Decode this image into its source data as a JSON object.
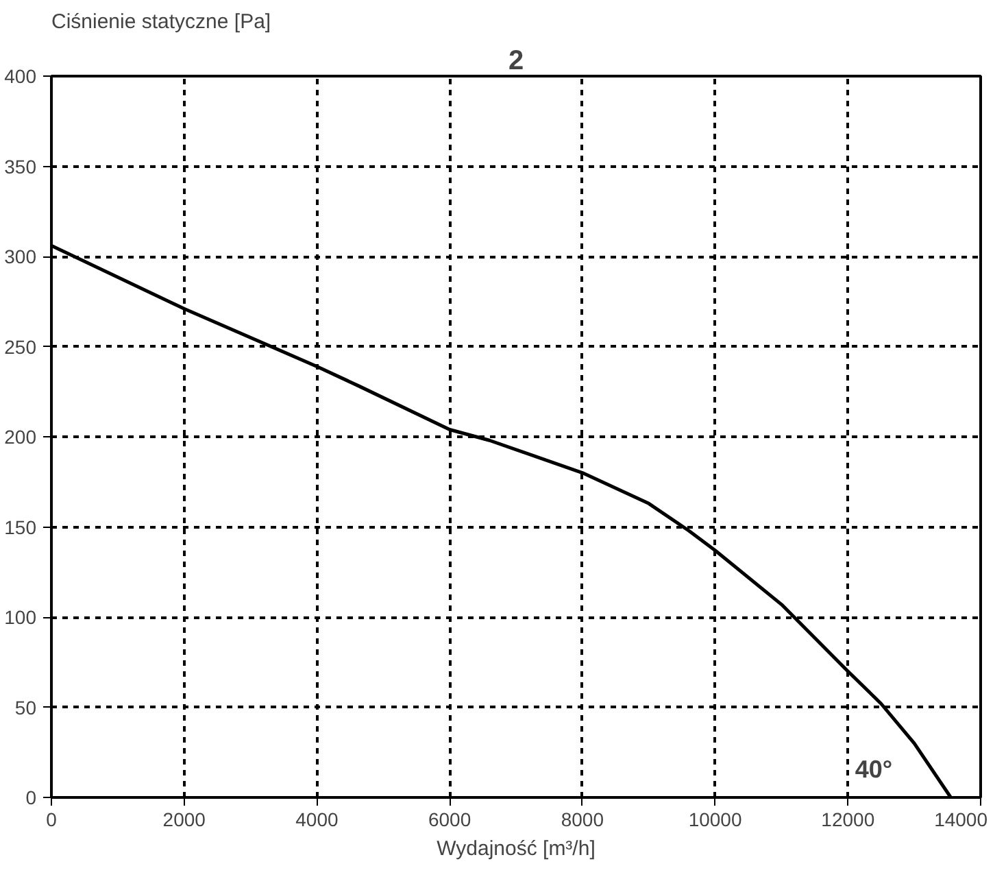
{
  "chart_data": {
    "type": "line",
    "xlabel": "Wydajność [m³/h]",
    "ylabel": "Ciśnienie statyczne [Pa]",
    "annotations": [
      "2",
      "40°"
    ],
    "x": [
      0,
      2000,
      4000,
      4640,
      6000,
      6600,
      8000,
      9000,
      9600,
      10000,
      11000,
      12000,
      12500,
      13000,
      13550
    ],
    "series": [
      {
        "color": "#000000",
        "values": [
          306,
          271,
          239,
          228,
          204,
          198,
          180,
          163,
          148,
          137,
          107,
          70,
          52,
          30,
          0
        ]
      }
    ],
    "xlim": [
      0,
      14000
    ],
    "ylim": [
      0,
      400
    ],
    "xticks": [
      0,
      2000,
      4000,
      6000,
      8000,
      10000,
      12000,
      14000
    ],
    "yticks": [
      0,
      50,
      100,
      150,
      200,
      250,
      300,
      350,
      400
    ],
    "grid": true,
    "marker": "none",
    "line_style": "solid"
  }
}
